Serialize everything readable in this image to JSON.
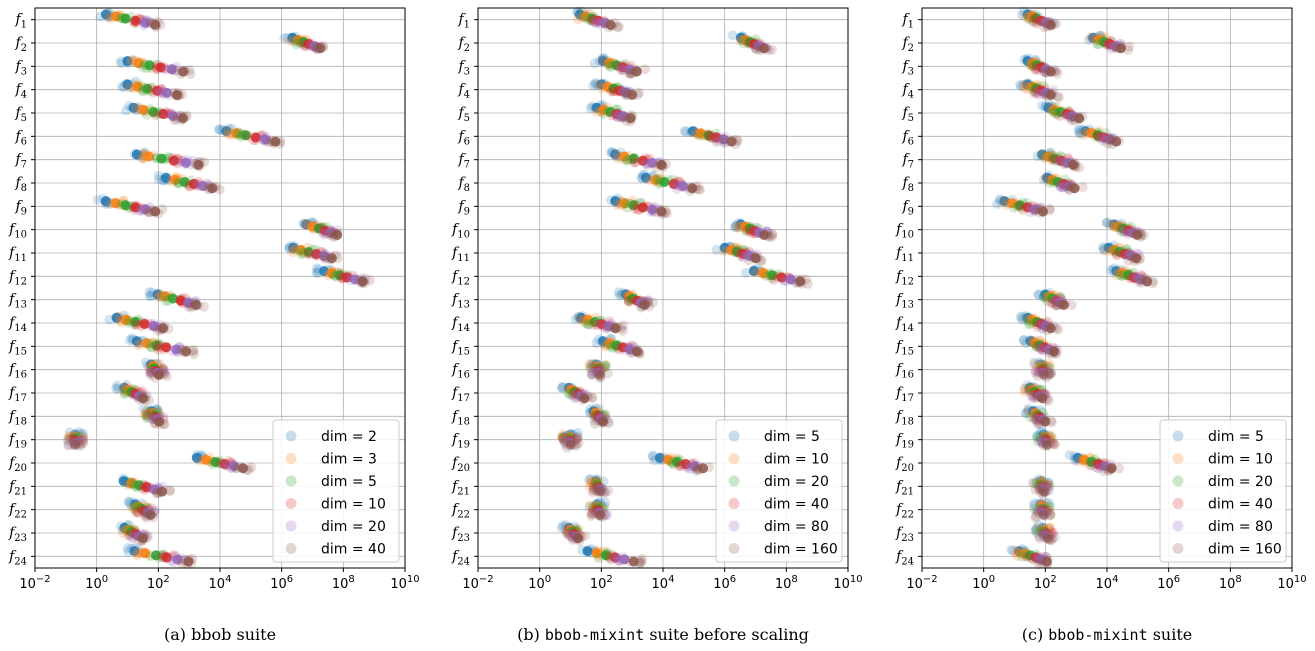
{
  "chart_data": [
    {
      "type": "scatter",
      "caption_prefix": "(a)",
      "caption_main": "bbob",
      "caption_suffix": "suite",
      "x_scale": "log",
      "xlim": [
        0.01,
        10000000000
      ],
      "x_ticks": [
        {
          "base": "10",
          "exp": "−2"
        },
        {
          "base": "10",
          "exp": "0"
        },
        {
          "base": "10",
          "exp": "2"
        },
        {
          "base": "10",
          "exp": "4"
        },
        {
          "base": "10",
          "exp": "6"
        },
        {
          "base": "10",
          "exp": "8"
        },
        {
          "base": "10",
          "exp": "10"
        }
      ],
      "y_categories": [
        "f1",
        "f2",
        "f3",
        "f4",
        "f5",
        "f6",
        "f7",
        "f8",
        "f9",
        "f10",
        "f11",
        "f12",
        "f13",
        "f14",
        "f15",
        "f16",
        "f17",
        "f18",
        "f19",
        "f20",
        "f21",
        "f22",
        "f23",
        "f24"
      ],
      "grid": true,
      "legend_position": "lower-right",
      "series": [
        {
          "name": "dim = 2",
          "color": "#1f77b4"
        },
        {
          "name": "dim = 3",
          "color": "#ff7f0e"
        },
        {
          "name": "dim = 5",
          "color": "#2ca02c"
        },
        {
          "name": "dim = 10",
          "color": "#d62728"
        },
        {
          "name": "dim = 20",
          "color": "#9467bd"
        },
        {
          "name": "dim = 40",
          "color": "#8c564b"
        }
      ],
      "centers_log10": [
        1.1,
        6.8,
        1.9,
        1.8,
        2.0,
        5.0,
        2.3,
        3.0,
        1.1,
        7.3,
        7.0,
        8.0,
        2.6,
        1.4,
        2.1,
        1.9,
        1.2,
        1.9,
        -0.7,
        4.0,
        1.5,
        1.5,
        1.2,
        2.1
      ],
      "series_spread_log10": [
        0.32,
        0.18,
        0.36,
        0.32,
        0.32,
        0.32,
        0.4,
        0.3,
        0.32,
        0.2,
        0.25,
        0.25,
        0.25,
        0.3,
        0.32,
        0.05,
        0.12,
        0.05,
        0.0,
        0.3,
        0.25,
        0.1,
        0.12,
        0.35
      ]
    },
    {
      "type": "scatter",
      "caption_prefix": "(b)",
      "caption_main": "bbob-mixint",
      "caption_suffix": "suite before scaling",
      "x_scale": "log",
      "xlim": [
        0.01,
        10000000000
      ],
      "x_ticks": [
        {
          "base": "10",
          "exp": "−2"
        },
        {
          "base": "10",
          "exp": "0"
        },
        {
          "base": "10",
          "exp": "2"
        },
        {
          "base": "10",
          "exp": "4"
        },
        {
          "base": "10",
          "exp": "6"
        },
        {
          "base": "10",
          "exp": "8"
        },
        {
          "base": "10",
          "exp": "10"
        }
      ],
      "y_categories": [
        "f1",
        "f2",
        "f3",
        "f4",
        "f5",
        "f6",
        "f7",
        "f8",
        "f9",
        "f10",
        "f11",
        "f12",
        "f13",
        "f14",
        "f15",
        "f16",
        "f17",
        "f18",
        "f19",
        "f20",
        "f21",
        "f22",
        "f23",
        "f24"
      ],
      "grid": true,
      "legend_position": "lower-right",
      "series": [
        {
          "name": "dim = 5",
          "color": "#1f77b4"
        },
        {
          "name": "dim = 10",
          "color": "#ff7f0e"
        },
        {
          "name": "dim = 20",
          "color": "#2ca02c"
        },
        {
          "name": "dim = 40",
          "color": "#d62728"
        },
        {
          "name": "dim = 80",
          "color": "#9467bd"
        },
        {
          "name": "dim = 160",
          "color": "#8c564b"
        }
      ],
      "centers_log10": [
        1.8,
        6.9,
        2.6,
        2.5,
        2.4,
        5.6,
        3.2,
        4.2,
        3.2,
        6.9,
        6.5,
        7.7,
        3.1,
        1.9,
        2.6,
        1.9,
        1.2,
        1.9,
        1.0,
        4.6,
        1.9,
        1.9,
        1.1,
        2.3
      ],
      "series_spread_log10": [
        0.2,
        0.15,
        0.22,
        0.2,
        0.22,
        0.25,
        0.3,
        0.3,
        0.3,
        0.15,
        0.2,
        0.3,
        0.12,
        0.22,
        0.22,
        0.02,
        0.1,
        0.06,
        0.0,
        0.28,
        0.03,
        0.02,
        0.06,
        0.3
      ]
    },
    {
      "type": "scatter",
      "caption_prefix": "(c)",
      "caption_main": "bbob-mixint",
      "caption_suffix": "suite",
      "x_scale": "log",
      "xlim": [
        0.01,
        10000000000
      ],
      "x_ticks": [
        {
          "base": "10",
          "exp": "−2"
        },
        {
          "base": "10",
          "exp": "0"
        },
        {
          "base": "10",
          "exp": "2"
        },
        {
          "base": "10",
          "exp": "4"
        },
        {
          "base": "10",
          "exp": "6"
        },
        {
          "base": "10",
          "exp": "8"
        },
        {
          "base": "10",
          "exp": "10"
        }
      ],
      "y_categories": [
        "f1",
        "f2",
        "f3",
        "f4",
        "f5",
        "f6",
        "f7",
        "f8",
        "f9",
        "f10",
        "f11",
        "f12",
        "f13",
        "f14",
        "f15",
        "f16",
        "f17",
        "f18",
        "f19",
        "f20",
        "f21",
        "f22",
        "f23",
        "f24"
      ],
      "grid": true,
      "legend_position": "lower-right",
      "series": [
        {
          "name": "dim = 5",
          "color": "#1f77b4"
        },
        {
          "name": "dim = 10",
          "color": "#ff7f0e"
        },
        {
          "name": "dim = 20",
          "color": "#2ca02c"
        },
        {
          "name": "dim = 40",
          "color": "#d62728"
        },
        {
          "name": "dim = 80",
          "color": "#9467bd"
        },
        {
          "name": "dim = 160",
          "color": "#8c564b"
        }
      ],
      "centers_log10": [
        1.8,
        4.0,
        1.8,
        1.8,
        2.6,
        3.8,
        2.4,
        2.5,
        1.3,
        4.6,
        4.5,
        4.8,
        2.3,
        1.8,
        1.9,
        1.9,
        1.7,
        1.8,
        2.0,
        3.6,
        1.9,
        1.9,
        2.0,
        1.6
      ],
      "series_spread_log10": [
        0.15,
        0.18,
        0.15,
        0.15,
        0.2,
        0.2,
        0.2,
        0.18,
        0.25,
        0.15,
        0.18,
        0.2,
        0.12,
        0.15,
        0.15,
        0.02,
        0.08,
        0.08,
        0.02,
        0.22,
        0.02,
        0.02,
        0.03,
        0.18
      ]
    }
  ]
}
